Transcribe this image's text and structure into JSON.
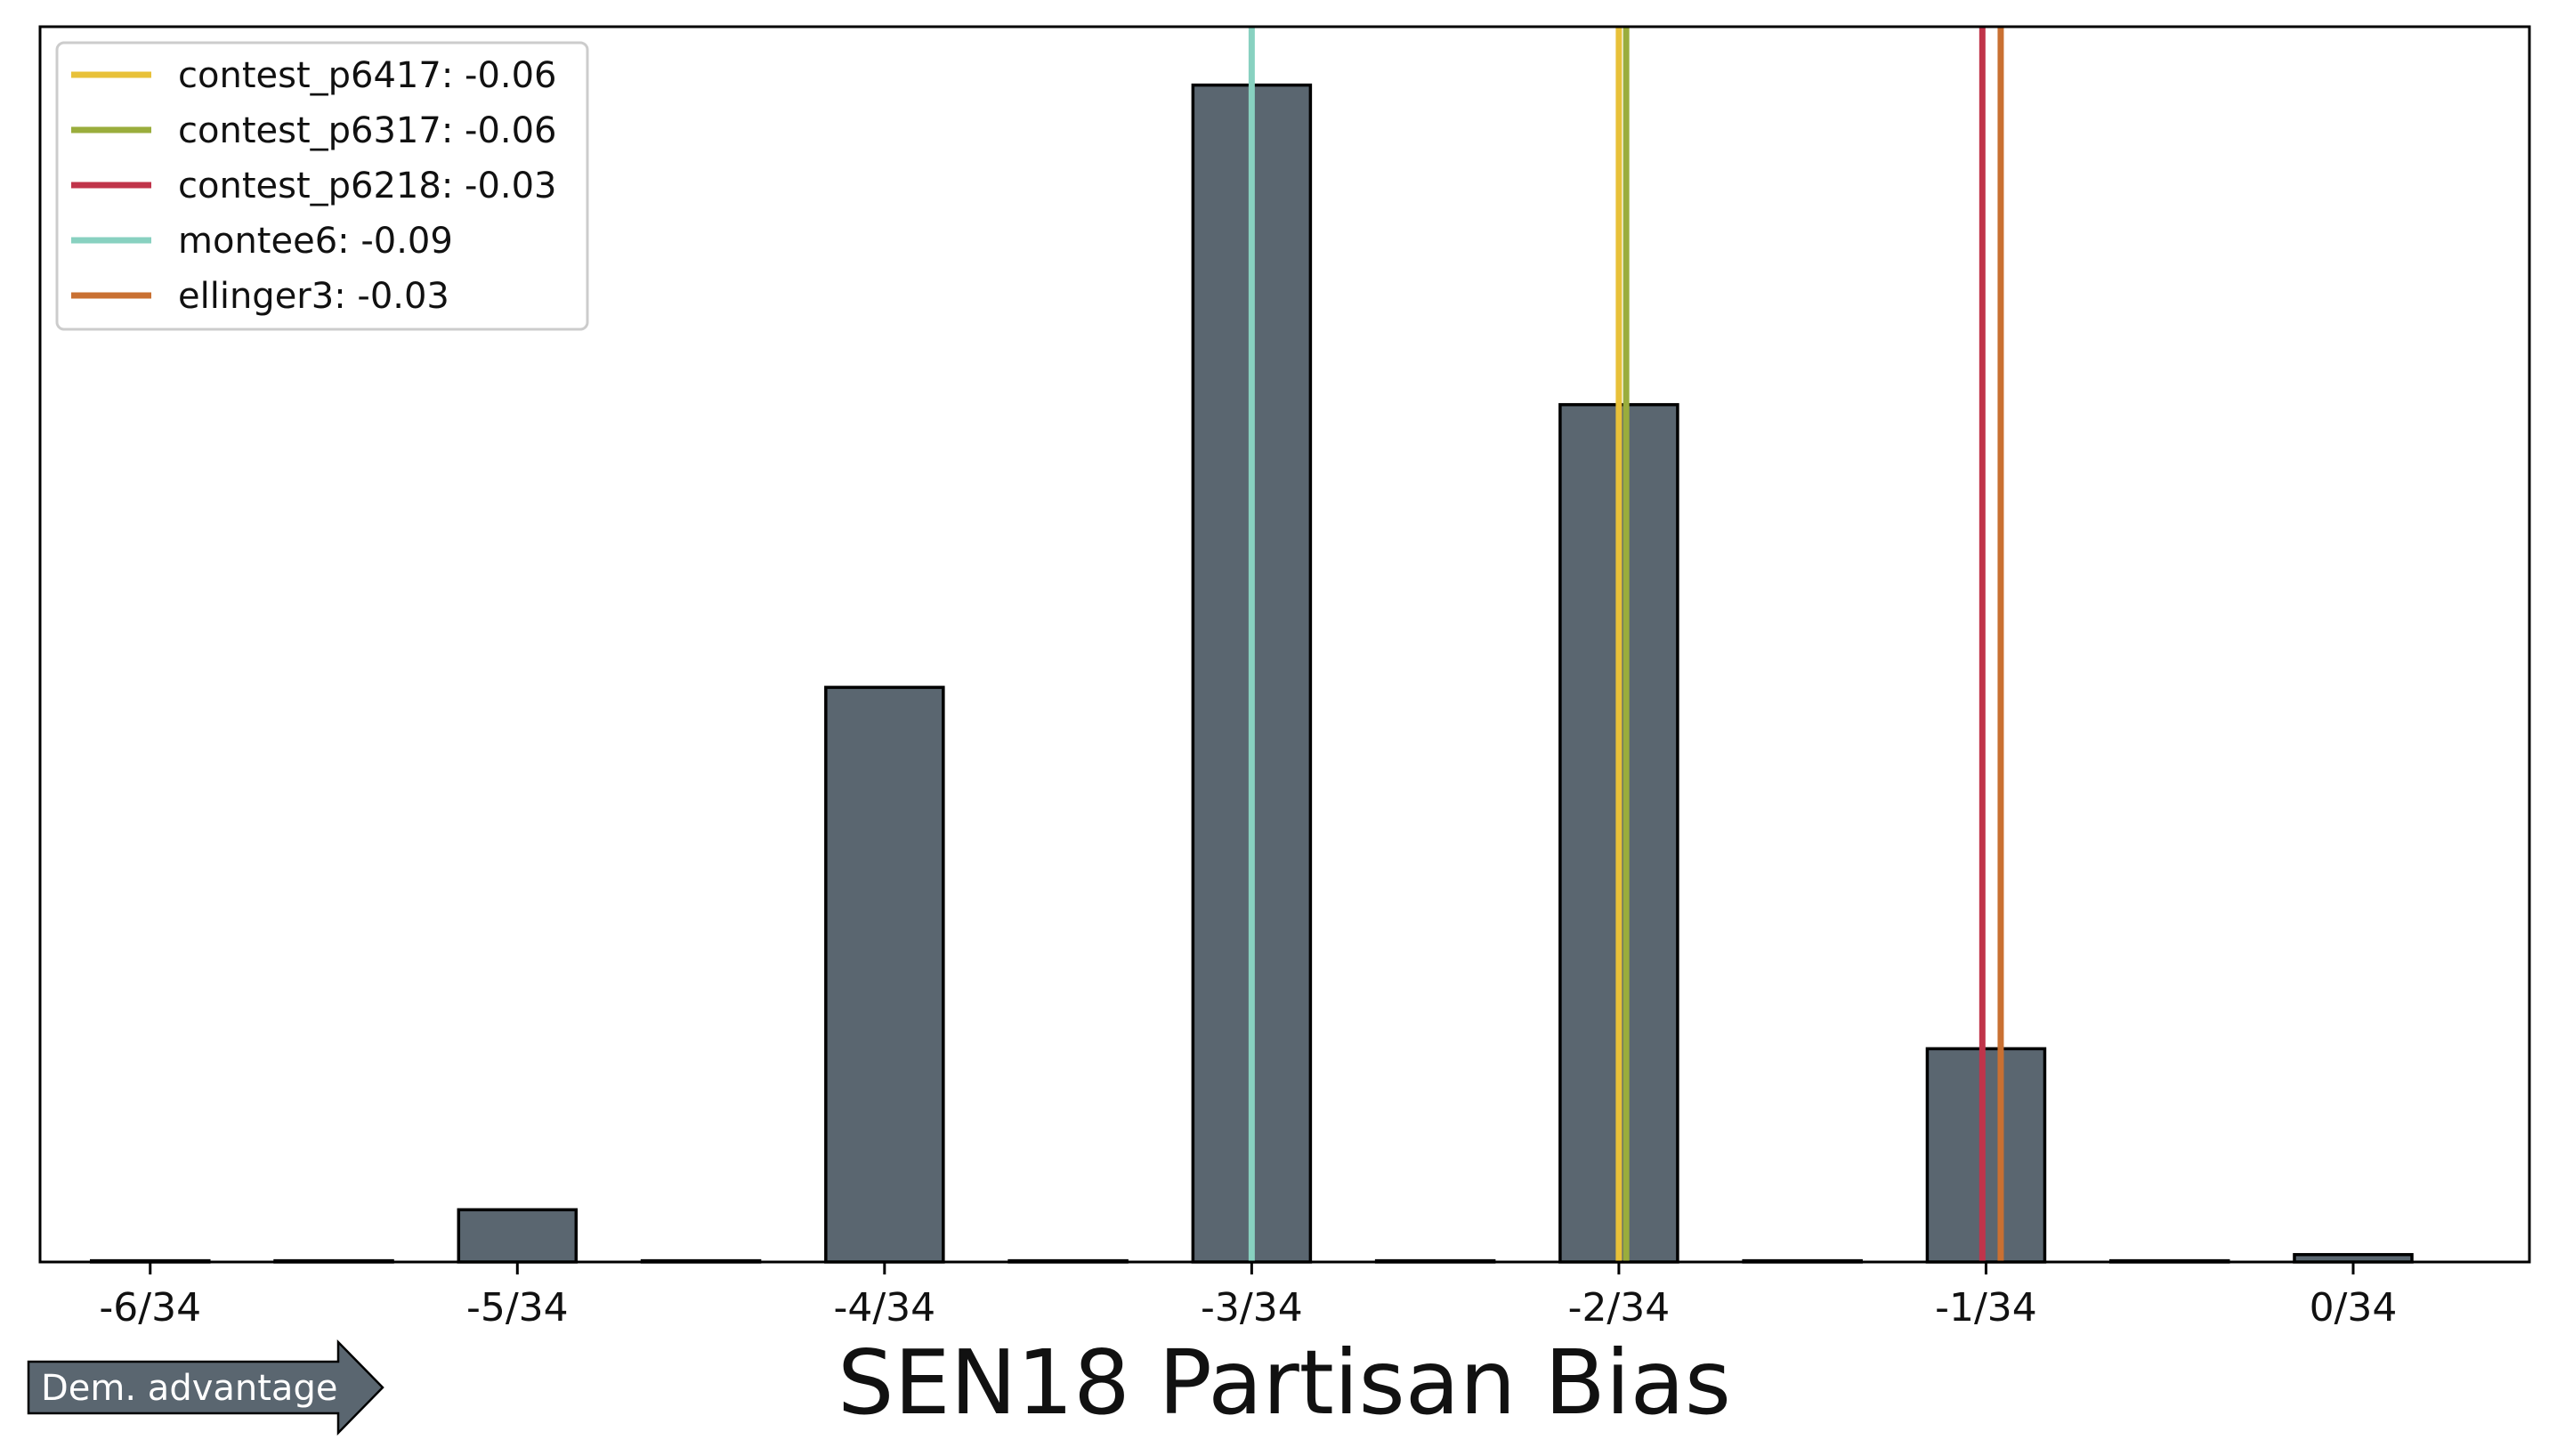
{
  "chart_data": {
    "type": "bar",
    "title": "SEN18 Partisan Bias",
    "xlabel": "",
    "ylabel": "",
    "x": [
      -6,
      -5.5,
      -5,
      -4.5,
      -4,
      -3.5,
      -3,
      -2.5,
      -2,
      -1.5,
      -1,
      -0.5,
      0
    ],
    "values": [
      0.2,
      0.2,
      8.5,
      0.2,
      93.5,
      0.2,
      191.5,
      0.2,
      139.5,
      0.2,
      34.7,
      0.2,
      1.2
    ],
    "tick_values": [
      -6,
      -5,
      -4,
      -3,
      -2,
      -1,
      0
    ],
    "tick_labels": [
      "-6/34",
      "-5/34",
      "-4/34",
      "-3/34",
      "-2/34",
      "-1/34",
      "0/34"
    ],
    "xlim": [
      -6.3,
      0.48
    ],
    "ylim": [
      0,
      201
    ],
    "bar_color": "#5a6670",
    "grid": false,
    "legend_position": "upper-left",
    "vlines": [
      {
        "name": "contest_p6417",
        "label": "contest_p6417: -0.06",
        "x_over_34": -2.0,
        "color": "#e8c139"
      },
      {
        "name": "contest_p6317",
        "label": "contest_p6317: -0.06",
        "x_over_34": -1.98,
        "color": "#9aad3c"
      },
      {
        "name": "contest_p6218",
        "label": "contest_p6218: -0.03",
        "x_over_34": -1.01,
        "color": "#c0344a"
      },
      {
        "name": "montee6",
        "label": "montee6: -0.09",
        "x_over_34": -3.0,
        "color": "#88d1c0"
      },
      {
        "name": "ellinger3",
        "label": "ellinger3: -0.03",
        "x_over_34": -0.96,
        "color": "#c97032"
      }
    ]
  },
  "annotation": {
    "arrow_label": "Dem. advantage",
    "arrow_color": "#5a6670"
  }
}
